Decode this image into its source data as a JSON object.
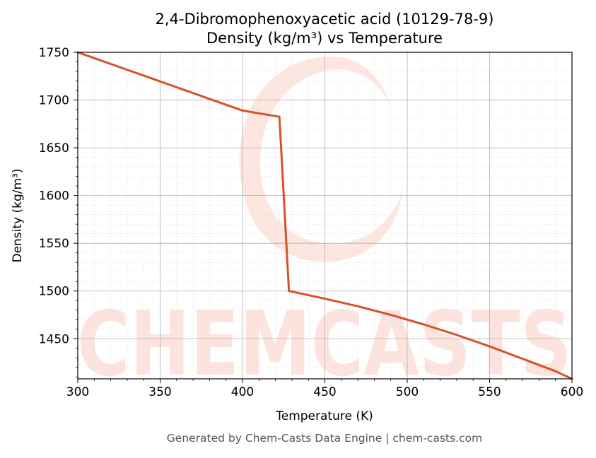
{
  "chart_data": {
    "type": "line",
    "title": "2,4-Dibromophenoxyacetic acid (10129-78-9)",
    "subtitle": "Density (kg/m³) vs Temperature",
    "xlabel": "Temperature (K)",
    "ylabel": "Density (kg/m³)",
    "xlim": [
      300,
      600
    ],
    "ylim": [
      1408,
      1750
    ],
    "xticks": [
      300,
      350,
      400,
      450,
      500,
      550,
      600
    ],
    "yticks": [
      1450,
      1500,
      1550,
      1600,
      1650,
      1700,
      1750
    ],
    "grid": true,
    "minor_grid": true,
    "series": [
      {
        "color": "#d6522a",
        "x": [
          300,
          320,
          340,
          360,
          380,
          400,
          422.4,
          428.2,
          450,
          470,
          490,
          510,
          530,
          550,
          570,
          590,
          600
        ],
        "y": [
          1750,
          1737.8,
          1725.6,
          1713.4,
          1701.2,
          1689.0,
          1682.5,
          1500,
          1492,
          1484,
          1475,
          1465,
          1454,
          1442,
          1429,
          1416,
          1408
        ]
      }
    ]
  },
  "footer": "Generated by Chem-Casts Data Engine | chem-casts.com",
  "watermark": "CHEMCASTS",
  "colors": {
    "line": "#d6522a",
    "watermark": "#fde3dd",
    "grid_major": "#b0b0b0",
    "grid_minor": "#e2e2e2"
  }
}
